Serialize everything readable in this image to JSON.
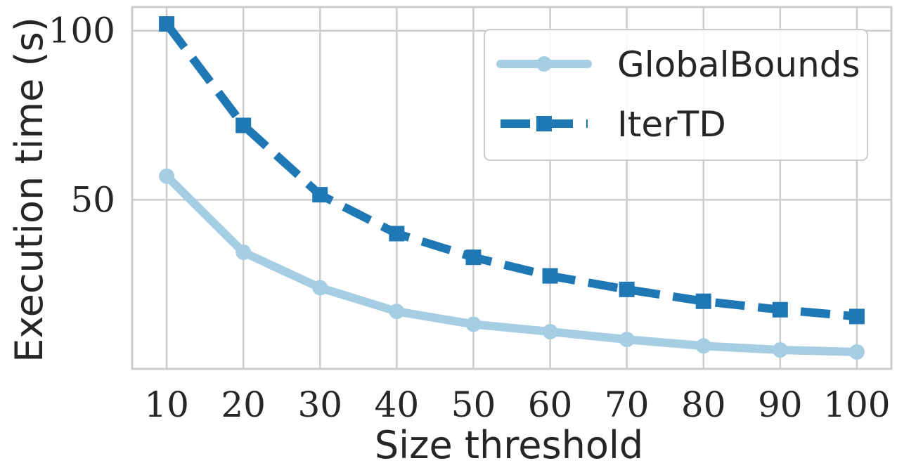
{
  "chart_data": {
    "type": "line",
    "title": "",
    "xlabel": "Size threshold",
    "ylabel": "Execution time (s)",
    "x": [
      10,
      20,
      30,
      40,
      50,
      60,
      70,
      80,
      90,
      100
    ],
    "x_tick_labels": [
      "10",
      "20",
      "30",
      "40",
      "50",
      "60",
      "70",
      "80",
      "90",
      "100"
    ],
    "y_ticks": [
      50,
      100
    ],
    "y_tick_labels": [
      "50",
      "100"
    ],
    "xlim": [
      5.5,
      104.5
    ],
    "ylim": [
      0,
      107
    ],
    "grid": true,
    "legend_position": "top-right",
    "series": [
      {
        "name": "GlobalBounds",
        "values": [
          57,
          34.5,
          24,
          17,
          13.2,
          11,
          8.7,
          6.8,
          5.6,
          5
        ],
        "color": "#a6cee3",
        "line_style": "solid",
        "marker": "circle"
      },
      {
        "name": "IterTD",
        "values": [
          102,
          72,
          51.5,
          40,
          33,
          27.5,
          23.5,
          20,
          17.5,
          15.5
        ],
        "color": "#1f78b4",
        "line_style": "dashed",
        "marker": "square"
      }
    ]
  }
}
